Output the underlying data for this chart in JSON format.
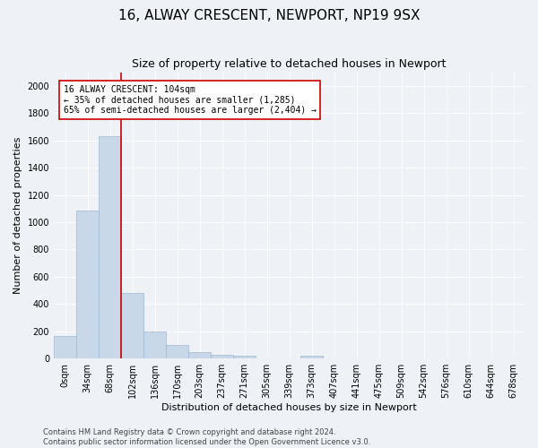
{
  "title": "16, ALWAY CRESCENT, NEWPORT, NP19 9SX",
  "subtitle": "Size of property relative to detached houses in Newport",
  "xlabel": "Distribution of detached houses by size in Newport",
  "ylabel": "Number of detached properties",
  "bin_labels": [
    "0sqm",
    "34sqm",
    "68sqm",
    "102sqm",
    "136sqm",
    "170sqm",
    "203sqm",
    "237sqm",
    "271sqm",
    "305sqm",
    "339sqm",
    "373sqm",
    "407sqm",
    "441sqm",
    "475sqm",
    "509sqm",
    "542sqm",
    "576sqm",
    "610sqm",
    "644sqm",
    "678sqm"
  ],
  "bar_values": [
    165,
    1085,
    1630,
    480,
    200,
    100,
    45,
    30,
    20,
    0,
    0,
    20,
    0,
    0,
    0,
    0,
    0,
    0,
    0,
    0,
    0
  ],
  "bar_color": "#c8d8e8",
  "bar_edgecolor": "#a0b8d0",
  "red_line_bin_index": 3,
  "ylim": [
    0,
    2100
  ],
  "yticks": [
    0,
    200,
    400,
    600,
    800,
    1000,
    1200,
    1400,
    1600,
    1800,
    2000
  ],
  "annotation_text": "16 ALWAY CRESCENT: 104sqm\n← 35% of detached houses are smaller (1,285)\n65% of semi-detached houses are larger (2,404) →",
  "annotation_box_color": "#ffffff",
  "annotation_box_edgecolor": "#cc0000",
  "footer_line1": "Contains HM Land Registry data © Crown copyright and database right 2024.",
  "footer_line2": "Contains public sector information licensed under the Open Government Licence v3.0.",
  "background_color": "#eef2f6",
  "grid_color": "#ffffff",
  "title_fontsize": 11,
  "subtitle_fontsize": 9,
  "ylabel_fontsize": 8,
  "xlabel_fontsize": 8,
  "tick_fontsize": 7,
  "annotation_fontsize": 7,
  "footer_fontsize": 6
}
